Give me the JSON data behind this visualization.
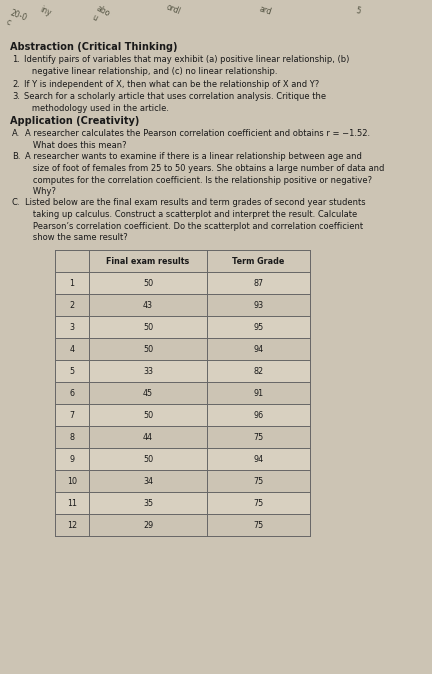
{
  "bg_color": "#ccc4b4",
  "text_color": "#1a1a1a",
  "title_fs": 7.0,
  "body_fs": 6.0,
  "table_fs": 5.8,
  "title_abstraction": "Abstraction (Critical Thinking)",
  "title_application": "Application (Creativity)",
  "table_header": [
    "",
    "Final exam results",
    "Term Grade"
  ],
  "table_rows": [
    [
      "1",
      "50",
      "87"
    ],
    [
      "2",
      "43",
      "93"
    ],
    [
      "3",
      "50",
      "95"
    ],
    [
      "4",
      "50",
      "94"
    ],
    [
      "5",
      "33",
      "82"
    ],
    [
      "6",
      "45",
      "91"
    ],
    [
      "7",
      "50",
      "96"
    ],
    [
      "8",
      "44",
      "75"
    ],
    [
      "9",
      "50",
      "94"
    ],
    [
      "10",
      "34",
      "75"
    ],
    [
      "11",
      "35",
      "75"
    ],
    [
      "12",
      "29",
      "75"
    ]
  ],
  "line_color": "#666666",
  "header_bg": "#d0c8b8",
  "row_bg1": "#d8d0c0",
  "row_bg2": "#ccc4b4"
}
